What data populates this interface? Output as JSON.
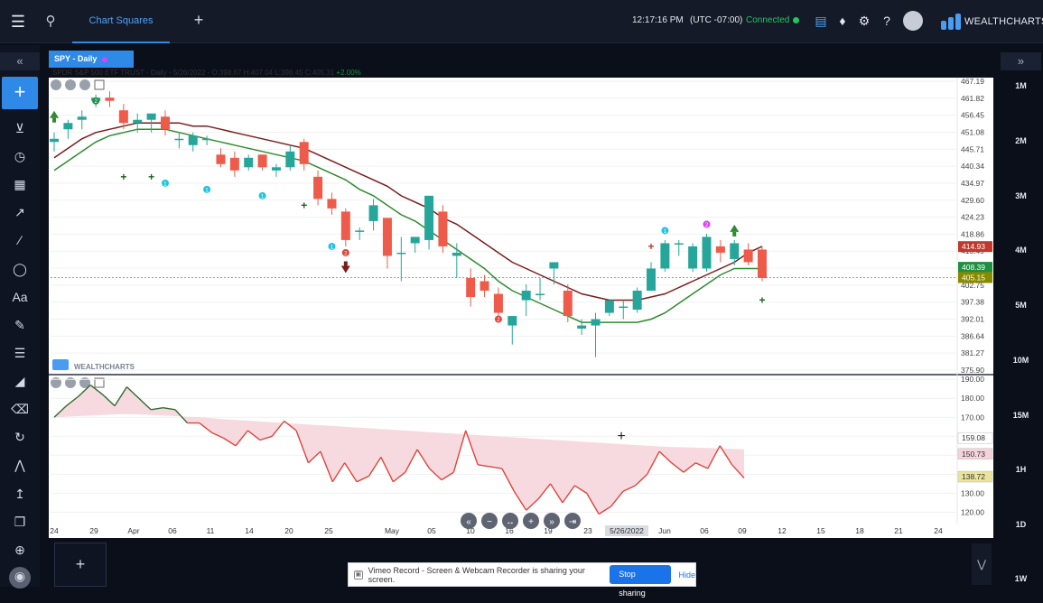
{
  "header": {
    "tab_label": "Chart Squares",
    "clock": "12:17:16 PM",
    "timezone": "(UTC -07:00)",
    "connection_status": "Connected",
    "brand": "WEALTHCHARTS"
  },
  "symbol_tab": "SPY - Daily",
  "info_line": {
    "name": "SPDR S&P 500 ETF TRUST",
    "rest": " - Daily - 5/26/2022 - O:398.67 H:407.04 L:398.45 C:405.31 ",
    "change": "+2.00%"
  },
  "timeframes": [
    "1M",
    "2M",
    "3M",
    "4M",
    "5M",
    "10M",
    "15M",
    "1H",
    "1D",
    "1W"
  ],
  "watermark": "WEALTHCHARTS",
  "chart_data": [
    {
      "type": "candlestick",
      "title": "SPY - Daily",
      "y_ticks": [
        "467.19",
        "461.82",
        "456.45",
        "451.08",
        "445.71",
        "440.34",
        "434.97",
        "429.60",
        "424.23",
        "418.86",
        "413.49",
        "408.12",
        "402.75",
        "397.38",
        "392.01",
        "386.64",
        "381.27",
        "375.90"
      ],
      "ylim": [
        375.9,
        467.19
      ],
      "price_labels": [
        {
          "text": "414.93",
          "value": 414.93,
          "color": "#c0392b"
        },
        {
          "text": "408.39",
          "value": 408.39,
          "color": "#1e8f3e"
        },
        {
          "text": "405.15",
          "value": 405.15,
          "color": "#8a8a00"
        }
      ],
      "reference_line": 405.15,
      "candles": [
        {
          "o": 448,
          "h": 451,
          "l": 445,
          "c": 449
        },
        {
          "o": 452,
          "h": 455,
          "l": 449,
          "c": 454
        },
        {
          "o": 455,
          "h": 458,
          "l": 452,
          "c": 456
        },
        {
          "o": 461,
          "h": 463,
          "l": 459,
          "c": 462
        },
        {
          "o": 462,
          "h": 464,
          "l": 459,
          "c": 461
        },
        {
          "o": 458,
          "h": 460,
          "l": 452,
          "c": 454
        },
        {
          "o": 454,
          "h": 457,
          "l": 451,
          "c": 455
        },
        {
          "o": 455,
          "h": 457,
          "l": 451,
          "c": 457
        },
        {
          "o": 456,
          "h": 458,
          "l": 450,
          "c": 452
        },
        {
          "o": 449,
          "h": 451,
          "l": 446,
          "c": 449
        },
        {
          "o": 447,
          "h": 451,
          "l": 445,
          "c": 450
        },
        {
          "o": 449,
          "h": 450,
          "l": 447,
          "c": 449
        },
        {
          "o": 444,
          "h": 446,
          "l": 440,
          "c": 441
        },
        {
          "o": 443,
          "h": 445,
          "l": 437,
          "c": 439
        },
        {
          "o": 440,
          "h": 444,
          "l": 439,
          "c": 443
        },
        {
          "o": 444,
          "h": 444,
          "l": 439,
          "c": 440
        },
        {
          "o": 439,
          "h": 441,
          "l": 437,
          "c": 440
        },
        {
          "o": 440,
          "h": 447,
          "l": 439,
          "c": 445
        },
        {
          "o": 448,
          "h": 449,
          "l": 439,
          "c": 441
        },
        {
          "o": 437,
          "h": 439,
          "l": 428,
          "c": 430
        },
        {
          "o": 430,
          "h": 432,
          "l": 425,
          "c": 427
        },
        {
          "o": 426,
          "h": 427,
          "l": 415,
          "c": 417
        },
        {
          "o": 420,
          "h": 421,
          "l": 417,
          "c": 420
        },
        {
          "o": 423,
          "h": 430,
          "l": 420,
          "c": 428
        },
        {
          "o": 424,
          "h": 424,
          "l": 408,
          "c": 412
        },
        {
          "o": 413,
          "h": 418,
          "l": 404,
          "c": 413
        },
        {
          "o": 416,
          "h": 418,
          "l": 413,
          "c": 418
        },
        {
          "o": 417,
          "h": 431,
          "l": 414,
          "c": 431
        },
        {
          "o": 426,
          "h": 428,
          "l": 413,
          "c": 415
        },
        {
          "o": 412,
          "h": 416,
          "l": 405,
          "c": 413
        },
        {
          "o": 405,
          "h": 408,
          "l": 396,
          "c": 399
        },
        {
          "o": 404,
          "h": 406,
          "l": 399,
          "c": 401
        },
        {
          "o": 400,
          "h": 402,
          "l": 391,
          "c": 394
        },
        {
          "o": 390,
          "h": 393,
          "l": 384,
          "c": 393
        },
        {
          "o": 398,
          "h": 403,
          "l": 393,
          "c": 401
        },
        {
          "o": 400,
          "h": 405,
          "l": 398,
          "c": 400
        },
        {
          "o": 408,
          "h": 410,
          "l": 403,
          "c": 410
        },
        {
          "o": 401,
          "h": 403,
          "l": 391,
          "c": 393
        },
        {
          "o": 389,
          "h": 392,
          "l": 387,
          "c": 390
        },
        {
          "o": 390,
          "h": 394,
          "l": 380,
          "c": 392
        },
        {
          "o": 394,
          "h": 398,
          "l": 393,
          "c": 398
        },
        {
          "o": 396,
          "h": 398,
          "l": 392,
          "c": 396
        },
        {
          "o": 395,
          "h": 402,
          "l": 394,
          "c": 401
        },
        {
          "o": 401,
          "h": 410,
          "l": 401,
          "c": 408
        },
        {
          "o": 408,
          "h": 417,
          "l": 407,
          "c": 416
        },
        {
          "o": 416,
          "h": 417,
          "l": 412,
          "c": 416
        },
        {
          "o": 408,
          "h": 416,
          "l": 407,
          "c": 415
        },
        {
          "o": 408,
          "h": 419,
          "l": 407,
          "c": 418
        },
        {
          "o": 415,
          "h": 417,
          "l": 410,
          "c": 413
        },
        {
          "o": 411,
          "h": 417,
          "l": 409,
          "c": 416
        },
        {
          "o": 414,
          "h": 416,
          "l": 409,
          "c": 410
        },
        {
          "o": 414,
          "h": 415,
          "l": 404,
          "c": 405
        }
      ],
      "ma_slow": [
        443,
        446,
        449,
        451,
        452,
        453,
        454,
        454,
        454,
        454,
        453,
        453,
        452,
        451,
        450,
        449,
        448,
        447,
        446,
        444,
        442,
        440,
        438,
        436,
        434,
        431,
        429,
        427,
        424,
        422,
        419,
        416,
        413,
        410,
        408,
        406,
        404,
        402,
        400,
        399,
        398,
        398,
        398,
        399,
        400,
        402,
        404,
        406,
        408,
        410,
        413,
        415
      ],
      "ma_fast": [
        439,
        442,
        445,
        448,
        450,
        451,
        452,
        452,
        452,
        451,
        450,
        449,
        448,
        447,
        446,
        445,
        444,
        443,
        442,
        440,
        438,
        436,
        433,
        431,
        428,
        425,
        423,
        420,
        417,
        414,
        411,
        408,
        404,
        401,
        399,
        397,
        395,
        393,
        391,
        391,
        391,
        391,
        391,
        392,
        394,
        397,
        400,
        403,
        406,
        408,
        408,
        408
      ]
    },
    {
      "type": "line",
      "y_ticks": [
        "190.00",
        "180.00",
        "170.00",
        "160.00",
        "150.00",
        "140.00",
        "130.00",
        "120.00"
      ],
      "ylim": [
        114,
        192
      ],
      "price_labels": [
        {
          "text": "159.08",
          "value": 159.08,
          "color": "#333"
        },
        {
          "text": "150.73",
          "value": 150.73,
          "color": "#333"
        },
        {
          "text": "138.72",
          "value": 138.72,
          "color": "#333"
        }
      ],
      "values": [
        170,
        176,
        181,
        187,
        182,
        176,
        186,
        180,
        174,
        175,
        174,
        167,
        167,
        162,
        159,
        155,
        163,
        158,
        160,
        168,
        163,
        146,
        152,
        136,
        146,
        136,
        139,
        149,
        136,
        141,
        153,
        143,
        137,
        141,
        163,
        145,
        144,
        143,
        131,
        121,
        127,
        135,
        125,
        134,
        130,
        119,
        123,
        131,
        134,
        140,
        152,
        146,
        141,
        146,
        143,
        155,
        145,
        138
      ],
      "baseline": [
        170,
        170.3,
        170.6,
        170.9,
        171.2,
        171.5,
        171.7,
        171.5,
        171.2,
        170.9,
        170.6,
        170.3,
        170,
        169.5,
        169,
        168.6,
        168.2,
        167.8,
        167.4,
        167,
        166.6,
        166.2,
        165.8,
        165.4,
        165,
        164.6,
        164.2,
        163.8,
        163.4,
        163,
        162.6,
        162.2,
        161.8,
        161.4,
        161,
        160.6,
        160.2,
        159.8,
        159.4,
        159,
        158.6,
        158.2,
        157.8,
        157.4,
        157,
        156.6,
        156.2,
        155.8,
        155.4,
        155,
        154.6,
        154.4,
        154.2,
        154,
        153.8,
        153.6,
        153.4,
        153.2
      ]
    }
  ],
  "x_labels": [
    "24",
    "29",
    "Apr",
    "06",
    "11",
    "14",
    "20",
    "25",
    "May",
    "05",
    "10",
    "16",
    "19",
    "23",
    "5/26/2022",
    "Jun",
    "06",
    "09",
    "12",
    "15",
    "18",
    "21",
    "24"
  ]
}
